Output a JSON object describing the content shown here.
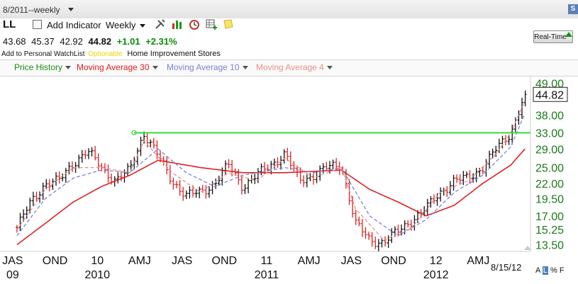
{
  "window": {
    "title_fragment": "8/2011--weekly",
    "badge": "S"
  },
  "header": {
    "ticker": "LL",
    "add_indicator_label": "Add Indicator",
    "period_label": "Weekly",
    "tools": [
      "tools-icon",
      "bar-chart-icon",
      "alarm-clock-icon",
      "table-add-icon",
      "sticky-note-icon"
    ],
    "quote": {
      "open": "43.68",
      "high": "45.37",
      "low": "42.92",
      "last": "44.82",
      "change": "+1.01",
      "change_pct": "+2.31%"
    },
    "watchlist_label": "Add to Personal WatchList",
    "optionable_label": "Optionable",
    "industry": "Home Improvement Stores",
    "realtime_label": "Real-Time"
  },
  "legend": {
    "items": [
      {
        "label": "Price History",
        "color": "#1a8a1a"
      },
      {
        "label": "Moving Average 30",
        "color": "#dd2222"
      },
      {
        "label": "Moving Average 10",
        "color": "#7b83d6"
      },
      {
        "label": "Moving Average 4",
        "color": "#e6908e"
      }
    ]
  },
  "footer": {
    "as_of_date": "8/15/12",
    "scale_buttons": [
      "A",
      "L",
      "%",
      "F"
    ],
    "active_scale": "L"
  },
  "chart_data": {
    "type": "line",
    "title": "",
    "y_scale": "log",
    "ylim": [
      12.8,
      52.0
    ],
    "y_ticks": [
      "49.00",
      "44.82",
      "38.00",
      "33.00",
      "29.00",
      "25.00",
      "22.00",
      "19.50",
      "17.00",
      "15.25",
      "13.50"
    ],
    "last_price_label": "44.82",
    "x_ticks": [
      {
        "label": "JAS",
        "year": "09"
      },
      {
        "label": "OND",
        "year": ""
      },
      {
        "label": "10",
        "year": "2010"
      },
      {
        "label": "AMJ",
        "year": ""
      },
      {
        "label": "JAS",
        "year": ""
      },
      {
        "label": "OND",
        "year": ""
      },
      {
        "label": "11",
        "year": "2011"
      },
      {
        "label": "AMJ",
        "year": ""
      },
      {
        "label": "JAS",
        "year": ""
      },
      {
        "label": "OND",
        "year": ""
      },
      {
        "label": "12",
        "year": "2012"
      },
      {
        "label": "AMJ",
        "year": ""
      }
    ],
    "date_range": [
      "2009-08",
      "2012-08-15"
    ],
    "resistance_line": {
      "value": 33.0,
      "from": "2010-04",
      "to": "2012-08",
      "color": "#33dd33"
    },
    "series": [
      {
        "name": "Price History",
        "color": "#111111",
        "weekly_close_keypoints": [
          [
            "2009-08",
            15.5
          ],
          [
            "2009-09",
            19.0
          ],
          [
            "2009-10",
            22.0
          ],
          [
            "2009-11",
            22.5
          ],
          [
            "2009-12",
            26.0
          ],
          [
            "2010-01",
            28.5
          ],
          [
            "2010-02",
            25.0
          ],
          [
            "2010-03",
            22.5
          ],
          [
            "2010-04",
            24.5
          ],
          [
            "2010-05",
            33.0
          ],
          [
            "2010-06",
            27.5
          ],
          [
            "2010-07",
            22.5
          ],
          [
            "2010-08",
            20.0
          ],
          [
            "2010-09",
            20.5
          ],
          [
            "2010-10",
            22.0
          ],
          [
            "2010-11",
            25.5
          ],
          [
            "2010-12",
            21.5
          ],
          [
            "2011-01",
            23.5
          ],
          [
            "2011-02",
            25.5
          ],
          [
            "2011-03",
            28.0
          ],
          [
            "2011-04",
            22.5
          ],
          [
            "2011-05",
            23.5
          ],
          [
            "2011-06",
            25.0
          ],
          [
            "2011-07",
            25.5
          ],
          [
            "2011-08",
            16.0
          ],
          [
            "2011-09",
            14.0
          ],
          [
            "2011-10",
            13.8
          ],
          [
            "2011-11",
            15.0
          ],
          [
            "2011-12",
            16.5
          ],
          [
            "2012-01",
            18.0
          ],
          [
            "2012-02",
            20.5
          ],
          [
            "2012-03",
            22.5
          ],
          [
            "2012-04",
            23.0
          ],
          [
            "2012-05",
            25.0
          ],
          [
            "2012-06",
            29.0
          ],
          [
            "2012-07",
            33.0
          ],
          [
            "2012-08",
            44.82
          ]
        ]
      },
      {
        "name": "Moving Average 30",
        "color": "#dd2222",
        "keypoints": [
          [
            "2009-08",
            13.5
          ],
          [
            "2009-10",
            16.0
          ],
          [
            "2009-12",
            19.0
          ],
          [
            "2010-02",
            21.5
          ],
          [
            "2010-04",
            23.5
          ],
          [
            "2010-06",
            26.5
          ],
          [
            "2010-09",
            25.0
          ],
          [
            "2010-12",
            24.0
          ],
          [
            "2011-03",
            24.0
          ],
          [
            "2011-07",
            24.5
          ],
          [
            "2011-09",
            21.0
          ],
          [
            "2011-11",
            19.0
          ],
          [
            "2012-01",
            17.0
          ],
          [
            "2012-03",
            18.5
          ],
          [
            "2012-05",
            22.0
          ],
          [
            "2012-07",
            25.5
          ],
          [
            "2012-08",
            29.0
          ]
        ]
      },
      {
        "name": "Moving Average 10",
        "color": "#7b83d6",
        "keypoints": [
          [
            "2009-08",
            14.5
          ],
          [
            "2009-10",
            19.5
          ],
          [
            "2009-12",
            23.0
          ],
          [
            "2010-02",
            24.5
          ],
          [
            "2010-04",
            24.0
          ],
          [
            "2010-06",
            29.0
          ],
          [
            "2010-08",
            24.0
          ],
          [
            "2010-10",
            21.5
          ],
          [
            "2010-12",
            23.5
          ],
          [
            "2011-03",
            25.0
          ],
          [
            "2011-05",
            24.0
          ],
          [
            "2011-07",
            25.0
          ],
          [
            "2011-09",
            17.0
          ],
          [
            "2011-11",
            14.5
          ],
          [
            "2012-01",
            16.5
          ],
          [
            "2012-03",
            20.5
          ],
          [
            "2012-05",
            23.5
          ],
          [
            "2012-07",
            29.5
          ],
          [
            "2012-08",
            38.5
          ]
        ]
      },
      {
        "name": "Moving Average 4",
        "color": "#e6908e",
        "keypoints": [
          [
            "2009-08",
            15.2
          ],
          [
            "2009-10",
            21.0
          ],
          [
            "2009-12",
            25.0
          ],
          [
            "2010-02",
            25.0
          ],
          [
            "2010-04",
            24.0
          ],
          [
            "2010-05",
            31.0
          ],
          [
            "2010-07",
            24.0
          ],
          [
            "2010-09",
            20.5
          ],
          [
            "2010-11",
            24.0
          ],
          [
            "2011-01",
            22.5
          ],
          [
            "2011-03",
            27.0
          ],
          [
            "2011-05",
            23.0
          ],
          [
            "2011-07",
            25.0
          ],
          [
            "2011-08",
            18.0
          ],
          [
            "2011-10",
            14.0
          ],
          [
            "2011-12",
            15.5
          ],
          [
            "2012-02",
            20.5
          ],
          [
            "2012-04",
            22.5
          ],
          [
            "2012-06",
            28.0
          ],
          [
            "2012-07",
            33.0
          ],
          [
            "2012-08",
            42.5
          ]
        ]
      }
    ]
  }
}
